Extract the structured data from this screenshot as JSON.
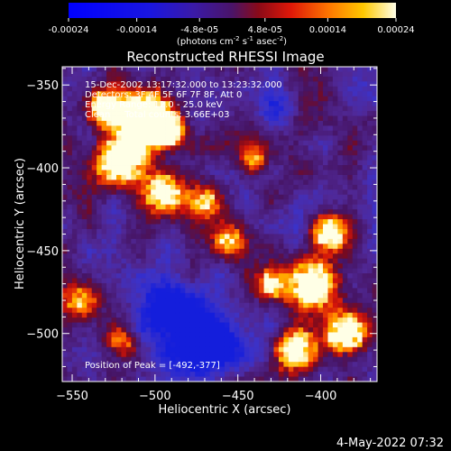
{
  "colorbar": {
    "ticks": [
      "-0.00024",
      "-0.00014",
      "-4.8e-05",
      "4.8e-05",
      "0.00014",
      "0.00024"
    ],
    "tick_values": [
      -0.00024,
      -0.00014,
      -4.8e-05,
      4.8e-05,
      0.00014,
      0.00024
    ],
    "range": [
      -0.00024,
      0.00024
    ],
    "units_text": "(photons cm",
    "units_exp1": "-2",
    "units_mid": " s",
    "units_exp2": "-1",
    "units_end": " asec",
    "units_exp3": "-2",
    "units_close": ")"
  },
  "chart_data": {
    "type": "heatmap",
    "title": "Reconstructed RHESSI Image",
    "xlabel": "Heliocentric X (arcsec)",
    "ylabel": "Heliocentric Y (arcsec)",
    "xlim": [
      -556,
      -366
    ],
    "ylim": [
      -529,
      -339
    ],
    "x_ticks": [
      -550,
      -500,
      -450,
      -400
    ],
    "y_ticks": [
      -350,
      -400,
      -450,
      -500
    ],
    "x_tick_labels": [
      "−550",
      "−500",
      "−450",
      "−400"
    ],
    "y_tick_labels": [
      "−350",
      "−400",
      "−450",
      "−500"
    ],
    "annotations": [
      "15-Dec-2002 13:17:32.000 to 13:23:32.000",
      "Detectors: 3F 4F 5F 6F 7F 8F, Att 0",
      "Energy Range: 12.0 - 25.0 keV",
      "Clean     Total counts: 3.66E+03"
    ],
    "peak_label": "Position of Peak = [-492,-377]",
    "peak": [
      -492,
      -377
    ],
    "color_table": "red temperature"
  },
  "footer": {
    "date": "4-May-2022 07:32"
  }
}
